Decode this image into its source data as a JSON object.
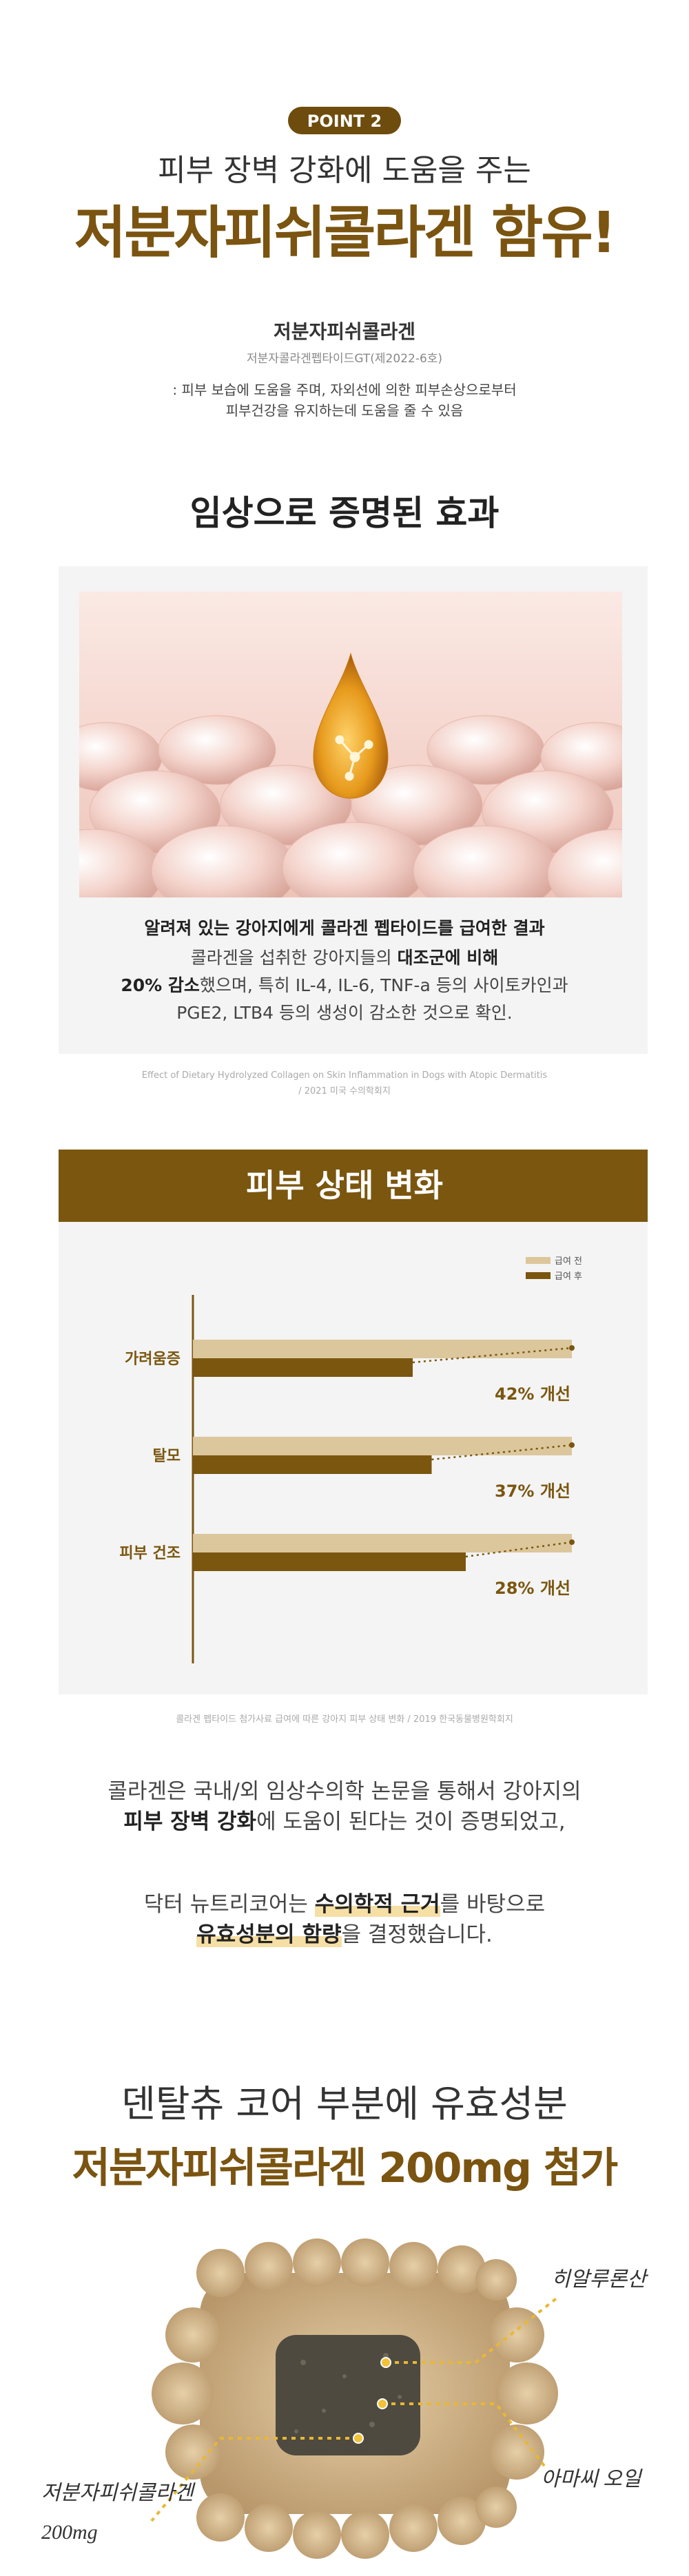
{
  "header": {
    "badge": "POINT 2",
    "subtitle": "피부 장벽 강화에 도움을 주는",
    "title": "저분자피쉬콜라겐 함유!"
  },
  "ingredient": {
    "name": "저분자피쉬콜라겐",
    "registration": "저분자콜라겐펩타이드GT(제2022-6호)",
    "description": [
      ": 피부 보습에 도움을 주며, 자외선에 의한 피부손상으로부터",
      "피부건강을 유지하는데 도움을 줄 수 있음"
    ]
  },
  "clinical": {
    "title": "임상으로 증명된 효과",
    "lines": [
      [
        {
          "text": "알려져 있는 강아지에게 콜라겐 펩타이드를 급여한 결과",
          "bold": true
        }
      ],
      [
        {
          "text": "콜라겐을 섭취한 강아지들의 "
        },
        {
          "text": "대조군에 비해",
          "bold": true
        }
      ],
      [
        {
          "text": "20% 감소",
          "bold": true
        },
        {
          "text": "했으며, 특히 IL-4, IL-6, TNF-a 등의 사이토카인과"
        }
      ],
      [
        {
          "text": "PGE2, LTB4 등의 생성이 감소한 것으로 확인."
        }
      ]
    ],
    "source": [
      "Effect of Dietary Hydrolyzed Collagen on Skin Inflammation in Dogs with Atopic Dermatitis",
      "/ 2021 미국 수의학회지"
    ]
  },
  "chart_data": {
    "type": "bar",
    "orientation": "horizontal",
    "title": "피부 상태 변화",
    "categories": [
      "가려움증",
      "탈모",
      "피부 건조"
    ],
    "series": [
      {
        "name": "급여 전",
        "color": "#dcc79c",
        "values": [
          100,
          100,
          100
        ]
      },
      {
        "name": "급여 후",
        "color": "#7a560f",
        "values": [
          58,
          63,
          72
        ]
      }
    ],
    "annotations": [
      "42% 개선",
      "37% 개선",
      "28% 개선"
    ],
    "xlim": [
      0,
      100
    ],
    "source": "콜라겐 펩타이드 첨가사료 급여에 따른 강아지 피부 상태 변화 / 2019 한국동물병원학회지"
  },
  "conclusion": {
    "lines": [
      [
        {
          "text": "콜라겐은 국내/외 임상수의학 논문을 통해서 강아지의"
        }
      ],
      [
        {
          "text": "피부 장벽 강화",
          "bold": true
        },
        {
          "text": "에 도움이 된다는 것이 증명되었고,"
        }
      ],
      [
        {
          "text": "닥터 뉴트리코어는 "
        },
        {
          "text": "수의학적 근거",
          "bold": true,
          "highlight": true
        },
        {
          "text": "를 바탕으로"
        }
      ],
      [
        {
          "text": "유효성분의 함량",
          "bold": true,
          "highlight": true
        },
        {
          "text": "을 결정했습니다."
        }
      ]
    ]
  },
  "dosage": {
    "subtitle": "덴탈츄 코어 부분에 유효성분",
    "title": "저분자피쉬콜라겐 200mg 첨가",
    "labels": [
      "히알루론산",
      "아마씨 오일",
      "저분자피쉬콜라겐",
      "200mg"
    ]
  }
}
